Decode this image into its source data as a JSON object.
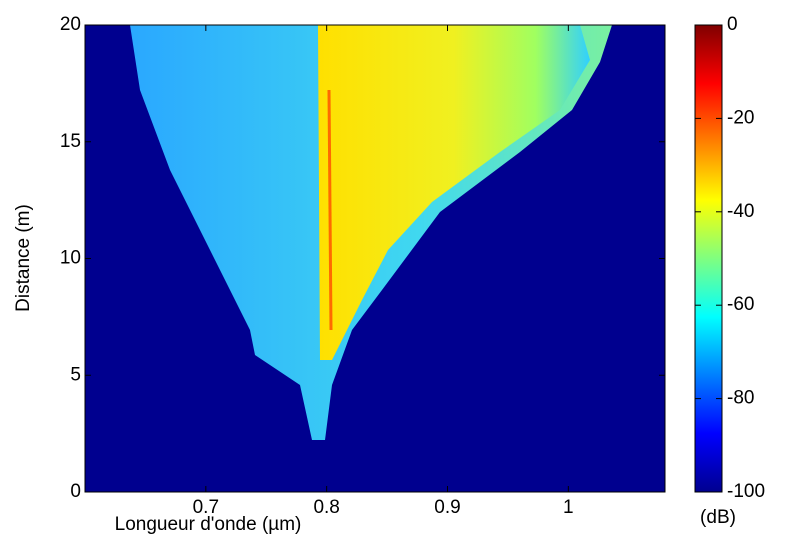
{
  "chart_data": {
    "type": "heatmap",
    "xlabel": "Longueur d'onde (µm)",
    "ylabel": "Distance (m)",
    "xlim": [
      0.6,
      1.08
    ],
    "xticks": [
      0.7,
      0.8,
      0.9,
      1
    ],
    "ylim": [
      0,
      20
    ],
    "yticks": [
      0,
      5,
      10,
      15,
      20
    ],
    "colorbar": {
      "label": "(dB)",
      "clim": [
        -100,
        0
      ],
      "ticks": [
        -100,
        -80,
        -60,
        -40,
        -20,
        0
      ],
      "colormap": "jet"
    }
  }
}
